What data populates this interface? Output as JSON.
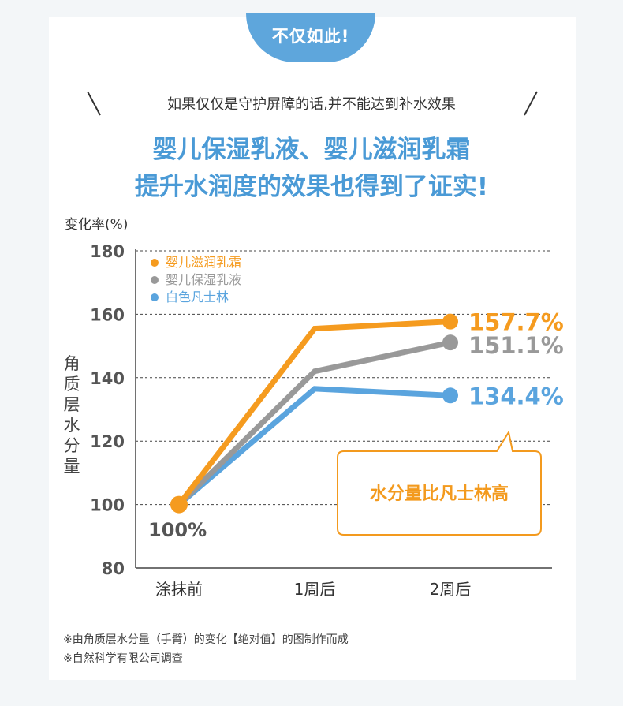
{
  "banner": {
    "label": "不仅如此!"
  },
  "intro": "如果仅仅是守护屏障的话,并不能达到补水效果",
  "headline": {
    "line1": "婴儿保湿乳液、婴儿滋润乳霜",
    "line2": "提升水润度的效果也得到了证实!"
  },
  "callout": "水分量比凡士林高",
  "notes": [
    "※由角质层水分量（手臂）的变化【绝对值】的图制作而成",
    "※自然科学有限公司调查"
  ],
  "chart_data": {
    "type": "line",
    "unit_label": "变化率(%)",
    "ylabel": "角质层水分量",
    "categories": [
      "涂抹前",
      "1周后",
      "2周后"
    ],
    "ylim": [
      80,
      180
    ],
    "yticks": [
      80,
      100,
      120,
      140,
      160,
      180
    ],
    "start_label": "100%",
    "grid": true,
    "legend_position": "top-left",
    "series": [
      {
        "name": "婴儿滋润乳霜",
        "values": [
          100,
          155.5,
          157.7
        ],
        "end_label": "157.7%",
        "color": "#f59b1f"
      },
      {
        "name": "婴儿保湿乳液",
        "values": [
          100,
          142,
          151.1
        ],
        "end_label": "151.1%",
        "color": "#999999"
      },
      {
        "name": "白色凡士林",
        "values": [
          100,
          136.5,
          134.4
        ],
        "end_label": "134.4%",
        "color": "#5aa4de"
      }
    ]
  }
}
